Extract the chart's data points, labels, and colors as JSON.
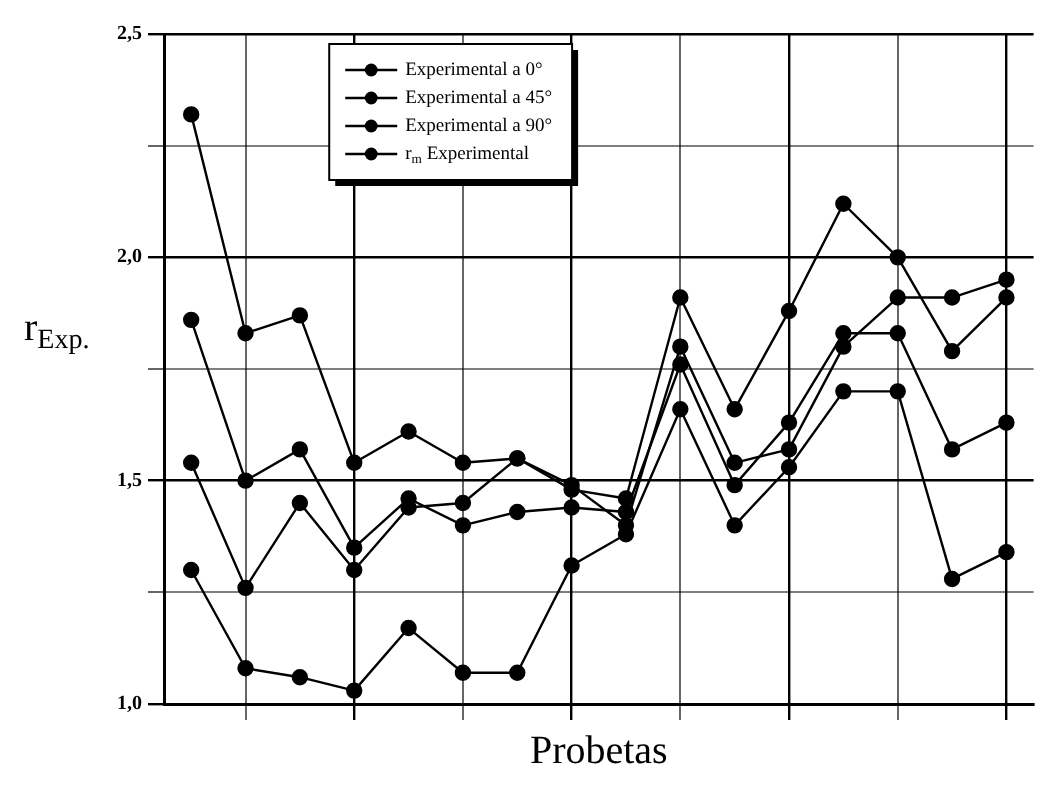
{
  "chart_data": {
    "type": "line",
    "xlabel": "Probetas",
    "ylabel": "r$_{Exp.}$",
    "categories": [
      null,
      null,
      null,
      null,
      null,
      null,
      null,
      null,
      null,
      null,
      null,
      null,
      null,
      null,
      null,
      null
    ],
    "series": [
      {
        "name": "Experimental a 0°",
        "color": "#000000",
        "values": [
          1.3,
          1.08,
          1.06,
          1.03,
          1.17,
          1.07,
          1.07,
          1.31,
          1.38,
          1.66,
          1.4,
          1.53,
          1.7,
          1.7,
          1.28,
          1.34
        ]
      },
      {
        "name": "Experimental a 45°",
        "color": "#000000",
        "values": [
          1.54,
          1.26,
          1.45,
          1.3,
          1.44,
          1.45,
          1.55,
          1.49,
          1.4,
          1.8,
          1.54,
          1.57,
          1.8,
          1.91,
          1.91,
          1.95
        ]
      },
      {
        "name": "Experimental a 90°",
        "color": "#000000",
        "values": [
          2.32,
          1.83,
          1.87,
          1.54,
          1.61,
          1.54,
          1.55,
          1.48,
          1.46,
          1.91,
          1.66,
          1.88,
          2.12,
          2.0,
          1.79,
          1.91
        ]
      },
      {
        "name": "r$_{m}$ Experimental",
        "color": "#000000",
        "values": [
          1.86,
          1.5,
          1.57,
          1.35,
          1.46,
          1.4,
          1.43,
          1.44,
          1.43,
          1.76,
          1.49,
          1.63,
          1.83,
          1.83,
          1.57,
          1.63
        ]
      }
    ],
    "ylim": [
      1.0,
      2.5
    ],
    "yticks": [
      {
        "value": 1.0,
        "label": "1,0"
      },
      {
        "value": 1.25,
        "label": null
      },
      {
        "value": 1.5,
        "label": "1,5"
      },
      {
        "value": 1.75,
        "label": null
      },
      {
        "value": 2.0,
        "label": "2,0"
      },
      {
        "value": 2.25,
        "label": null
      },
      {
        "value": 2.5,
        "label": "2,5"
      }
    ],
    "grid": true,
    "legend": "top",
    "marker": "circle",
    "line_style": "solid",
    "tick_labels": "y"
  }
}
